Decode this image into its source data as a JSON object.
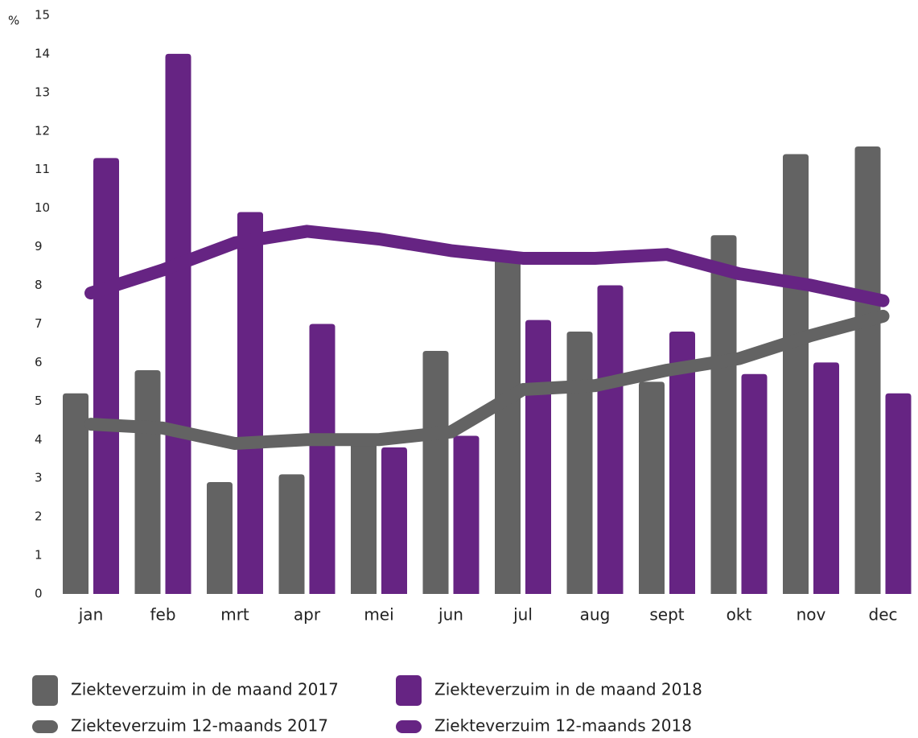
{
  "chart_data": {
    "type": "bar",
    "y_unit": "%",
    "ylim": [
      0,
      15
    ],
    "y_ticks": [
      0,
      1,
      2,
      3,
      4,
      5,
      6,
      7,
      8,
      9,
      10,
      11,
      12,
      13,
      14,
      15
    ],
    "grid": false,
    "legend_position": "bottom",
    "categories": [
      "jan",
      "feb",
      "mrt",
      "apr",
      "mei",
      "jun",
      "jul",
      "aug",
      "sept",
      "okt",
      "nov",
      "dec"
    ],
    "series": [
      {
        "name": "Ziekteverzuim in de maand 2017",
        "type": "bar",
        "color": "#636363",
        "values": [
          5.2,
          5.8,
          2.9,
          3.1,
          4.0,
          6.3,
          8.8,
          6.8,
          5.5,
          9.3,
          11.4,
          11.6
        ]
      },
      {
        "name": "Ziekteverzuim in de maand 2018",
        "type": "bar",
        "color": "#662483",
        "values": [
          11.3,
          14.0,
          9.9,
          7.0,
          3.8,
          4.1,
          7.1,
          8.0,
          6.8,
          5.7,
          6.0,
          5.2
        ]
      },
      {
        "name": "Ziekteverzuim 12-maands 2017",
        "type": "line",
        "color": "#636363",
        "values": [
          4.4,
          4.3,
          3.9,
          4.0,
          4.0,
          4.2,
          5.3,
          5.4,
          5.8,
          6.1,
          6.7,
          7.2
        ]
      },
      {
        "name": "Ziekteverzuim 12-maands 2018",
        "type": "line",
        "color": "#662483",
        "values": [
          7.8,
          8.4,
          9.1,
          9.4,
          9.2,
          8.9,
          8.7,
          8.7,
          8.8,
          8.3,
          8.0,
          7.6
        ]
      }
    ]
  }
}
